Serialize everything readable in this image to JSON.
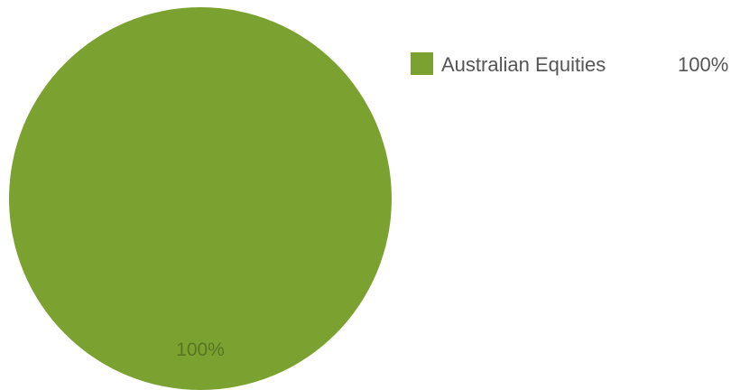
{
  "chart_data": {
    "type": "pie",
    "slices": [
      {
        "label": "Australian Equities",
        "value": 100,
        "value_label": "100%",
        "color": "#7ba230"
      }
    ],
    "legend_position": "top-right"
  }
}
